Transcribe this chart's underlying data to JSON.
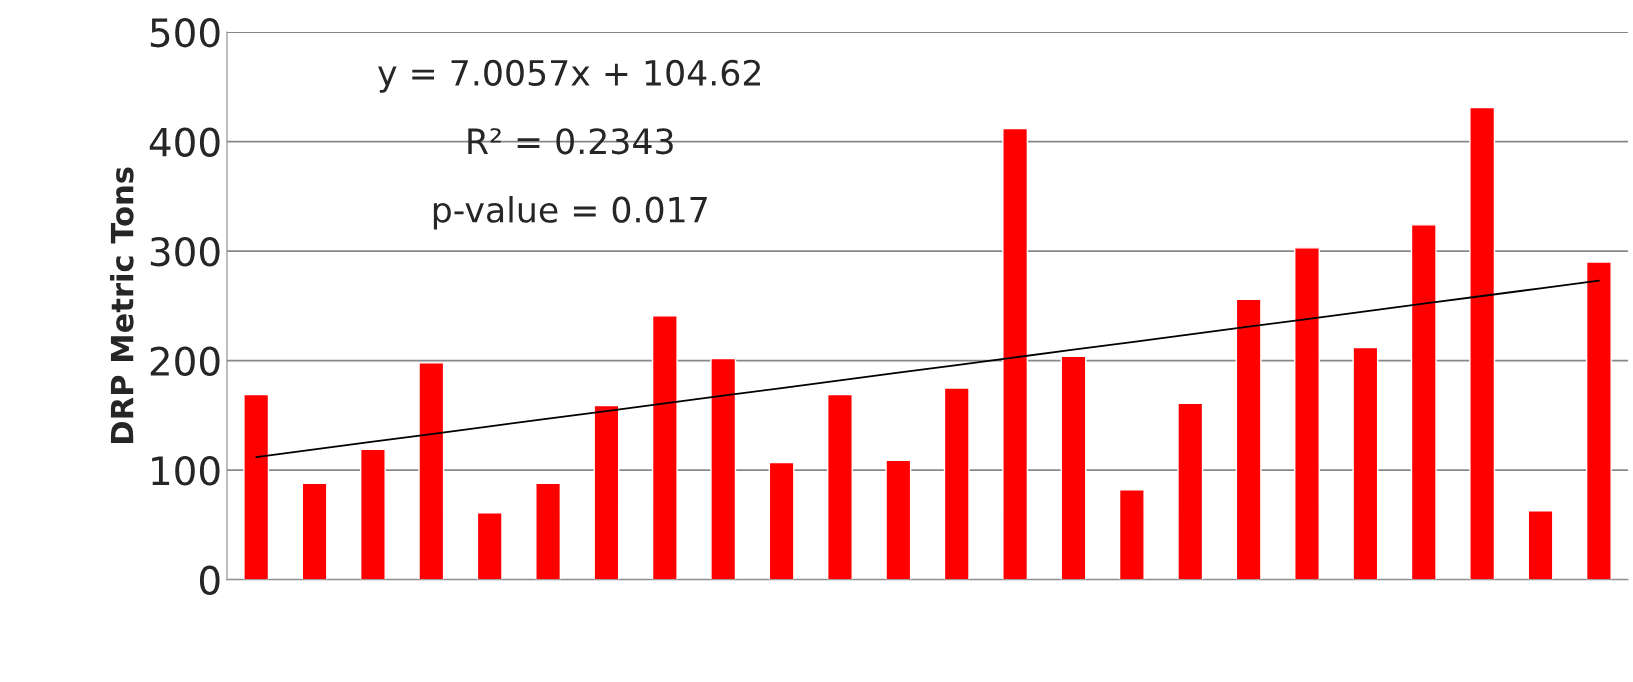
{
  "chart_data": {
    "type": "bar",
    "ylabel": "DRP Metric Tons",
    "categories": [
      null,
      null,
      null,
      null,
      null,
      null,
      null,
      null,
      null,
      null,
      null,
      null,
      null,
      null,
      null,
      null,
      null,
      null,
      null,
      null,
      null,
      null,
      null,
      null
    ],
    "series": [
      {
        "color": "#ff0000",
        "values": [
          169,
          88,
          119,
          198,
          61,
          88,
          159,
          241,
          202,
          107,
          169,
          109,
          175,
          412,
          204,
          82,
          161,
          256,
          303,
          212,
          324,
          431,
          63,
          290
        ]
      },
      {
        "type": "line",
        "color": "#000000",
        "values": [
          112,
          119,
          126,
          133,
          140,
          147,
          154,
          161,
          168,
          175,
          182,
          189,
          196,
          203,
          210,
          217,
          224,
          231,
          238,
          245,
          252,
          259,
          266,
          273
        ]
      }
    ],
    "annotations": [
      "y = 7.0057x + 104.62",
      "R² = 0.2343",
      "p-value = 0.017"
    ],
    "ylim": [
      0,
      500
    ],
    "yticks": [
      0,
      100,
      200,
      300,
      400,
      500
    ],
    "grid": "y",
    "tick_labels": "y"
  }
}
